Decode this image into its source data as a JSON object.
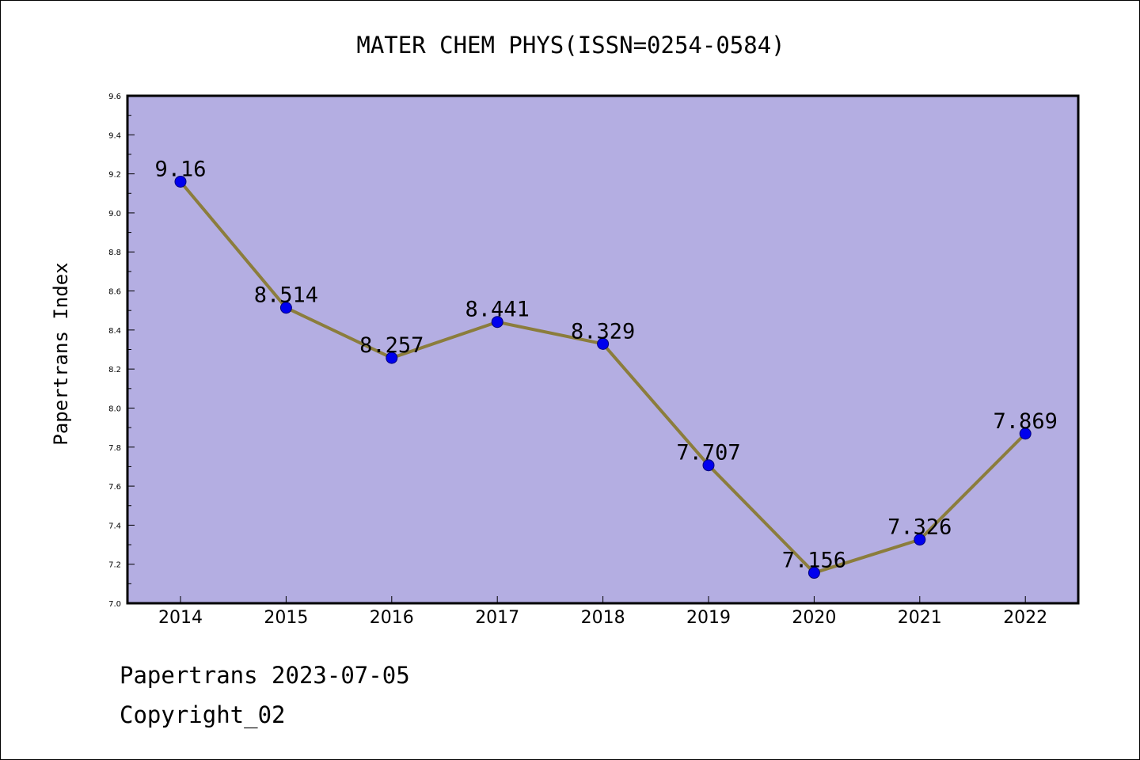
{
  "chart_data": {
    "type": "line",
    "title": "MATER CHEM PHYS(ISSN=0254-0584)",
    "xlabel": "",
    "ylabel": "Papertrans Index",
    "categories": [
      "2014",
      "2015",
      "2016",
      "2017",
      "2018",
      "2019",
      "2020",
      "2021",
      "2022"
    ],
    "series": [
      {
        "values": [
          9.16,
          8.514,
          8.257,
          8.441,
          8.329,
          7.707,
          7.156,
          7.326,
          7.869
        ],
        "data_labels": [
          "9.16",
          "8.514",
          "8.257",
          "8.441",
          "8.329",
          "7.707",
          "7.156",
          "7.326",
          "7.869"
        ]
      }
    ],
    "ylim": [
      7.0,
      9.6
    ],
    "yticks": [
      "7.0",
      "7.2",
      "7.4",
      "7.6",
      "7.8",
      "8.0",
      "8.2",
      "8.4",
      "8.6",
      "8.8",
      "9.0",
      "9.2",
      "9.4",
      "9.6"
    ],
    "grid": false,
    "legend": "none"
  },
  "footer": {
    "line1": "Papertrans 2023-07-05",
    "line2": "Copyright_02"
  },
  "colors": {
    "plot_background": "#b4aee2",
    "line": "#8b7d3c",
    "marker": "#0000ee",
    "axis": "#000000"
  }
}
